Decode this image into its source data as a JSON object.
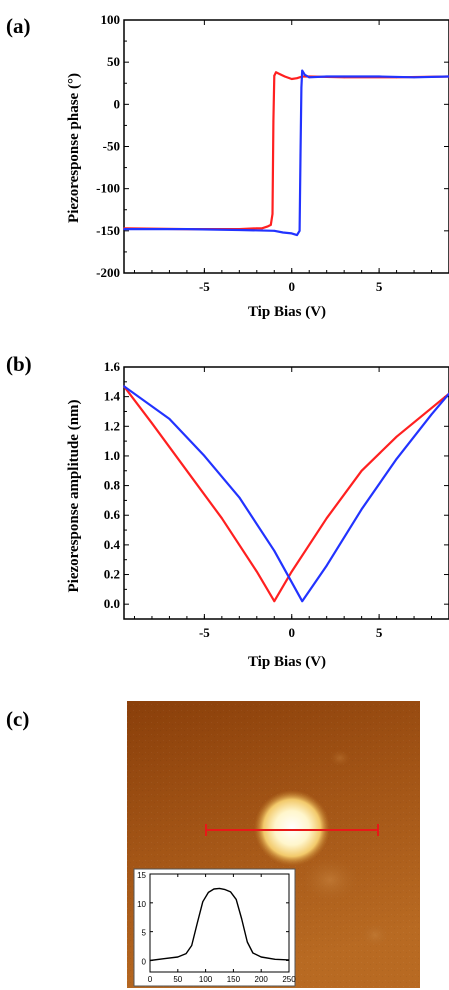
{
  "panels": {
    "a": "(a)",
    "b": "(b)",
    "c": "(c)"
  },
  "colors": {
    "series_red": "#ff2020",
    "series_blue": "#2233ff",
    "afm_dark": "#7a3305",
    "afm_mid": "#a85a18",
    "afm_spot": "#fff6cc",
    "line_profile": "#e81818"
  },
  "chart_data": [
    {
      "id": "a",
      "type": "line",
      "title": "",
      "xlabel": "Tip Bias (V)",
      "ylabel": "Piezoresponse phase (°)",
      "xlim": [
        -9.6,
        9
      ],
      "ylim": [
        -200,
        100
      ],
      "xticks": [
        -5,
        0,
        5
      ],
      "yticks": [
        -200,
        -150,
        -100,
        -50,
        0,
        50,
        100
      ],
      "grid": false,
      "series": [
        {
          "color": "#ff2020",
          "x": [
            -9.6,
            -6,
            -3,
            -2,
            -1.7,
            -1.4,
            -1.2,
            -1.1,
            -1.05,
            -1.0,
            -0.9,
            -0.7,
            -0.4,
            0,
            0.3,
            0.6,
            1,
            3,
            6,
            9
          ],
          "y": [
            -147,
            -148,
            -148,
            -147,
            -147,
            -145,
            -143,
            -130,
            -20,
            34,
            38,
            36,
            33,
            30,
            31,
            33,
            33,
            32,
            32,
            33
          ]
        },
        {
          "color": "#2233ff",
          "x": [
            -9.6,
            -6,
            -3,
            -1,
            -0.5,
            0,
            0.3,
            0.45,
            0.5,
            0.55,
            0.6,
            0.75,
            1,
            2,
            3,
            5,
            7,
            9
          ],
          "y": [
            -148,
            -148,
            -149,
            -150,
            -152,
            -153,
            -155,
            -150,
            -60,
            20,
            40,
            35,
            32,
            33,
            33,
            33,
            32,
            33
          ]
        }
      ]
    },
    {
      "id": "b",
      "type": "line",
      "title": "",
      "xlabel": "Tip Bias (V)",
      "ylabel": "Piezoresponse amplitude (nm)",
      "xlim": [
        -9.6,
        9
      ],
      "ylim": [
        -0.1,
        1.6
      ],
      "xticks": [
        -5,
        0,
        5
      ],
      "yticks": [
        0.0,
        0.2,
        0.4,
        0.6,
        0.8,
        1.0,
        1.2,
        1.4,
        1.6
      ],
      "grid": false,
      "series": [
        {
          "color": "#ff2020",
          "x": [
            -9.6,
            -8,
            -6,
            -4,
            -2,
            -1,
            0,
            2,
            4,
            6,
            9
          ],
          "y": [
            1.47,
            1.22,
            0.9,
            0.58,
            0.22,
            0.02,
            0.22,
            0.58,
            0.9,
            1.13,
            1.42
          ]
        },
        {
          "color": "#2233ff",
          "x": [
            -9.6,
            -7,
            -5,
            -3,
            -1,
            0.6,
            2,
            4,
            6,
            8,
            9
          ],
          "y": [
            1.47,
            1.25,
            1.0,
            0.72,
            0.36,
            0.02,
            0.26,
            0.64,
            0.98,
            1.28,
            1.42
          ]
        }
      ]
    },
    {
      "id": "c-inset",
      "type": "line",
      "title": "",
      "xlabel": "",
      "ylabel": "",
      "xlim": [
        0,
        250
      ],
      "ylim": [
        -2,
        15
      ],
      "xticks": [
        0,
        50,
        100,
        150,
        200,
        250
      ],
      "yticks": [
        0,
        5,
        10,
        15
      ],
      "grid": false,
      "series": [
        {
          "color": "#000000",
          "x": [
            0,
            25,
            50,
            65,
            75,
            85,
            95,
            105,
            115,
            125,
            135,
            145,
            155,
            165,
            175,
            185,
            200,
            225,
            250
          ],
          "y": [
            0,
            0.3,
            0.6,
            1.2,
            2.6,
            6.5,
            10.2,
            11.8,
            12.4,
            12.5,
            12.3,
            11.9,
            10.6,
            7.2,
            3.2,
            1.3,
            0.6,
            0.2,
            0.1
          ]
        }
      ]
    }
  ]
}
